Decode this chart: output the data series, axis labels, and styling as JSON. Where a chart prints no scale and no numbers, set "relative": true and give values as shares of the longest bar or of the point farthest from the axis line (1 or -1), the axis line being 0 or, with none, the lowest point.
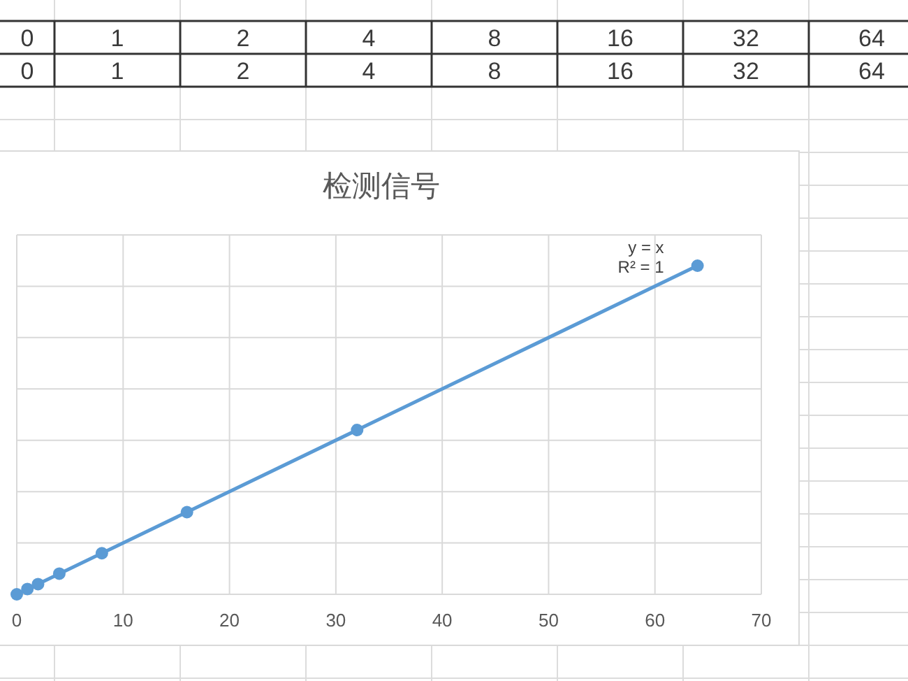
{
  "chart_data": [
    {
      "type": "other",
      "annotations": [
        "0",
        "1",
        "2",
        "4",
        "8",
        "16",
        "32",
        "64",
        "0",
        "1",
        "2",
        "4",
        "8",
        "16",
        "32",
        "64"
      ]
    },
    {
      "type": "scatter",
      "title": "检测信号",
      "relative": true,
      "x": [
        0,
        1,
        2,
        4,
        8,
        16,
        32,
        64
      ],
      "series": [
        {
          "type": "scatter",
          "color": "#5b9bd5",
          "values": [
            0,
            0.016,
            0.031,
            0.063,
            0.125,
            0.25,
            0.5,
            1
          ]
        },
        {
          "type": "line",
          "x": [
            0,
            64
          ],
          "values": [
            0,
            1
          ],
          "color": "#5b9bd5",
          "marker": "none"
        }
      ],
      "xlim": [
        0,
        70
      ],
      "xticks": [
        0,
        10,
        20,
        30,
        40,
        50,
        60,
        70
      ],
      "grid": true,
      "marker": "circle",
      "annotations": [
        "y = x",
        "R² = 1"
      ]
    }
  ]
}
